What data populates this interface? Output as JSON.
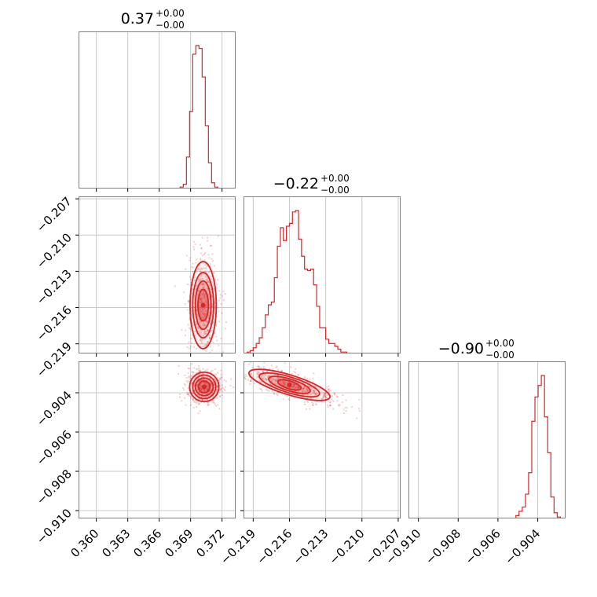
{
  "colors": {
    "accent": "#d62728",
    "grid": "#c8c8c8",
    "frame": "#808080"
  },
  "chart_data": [
    {
      "type": "histogram",
      "panel": "hist-param-1",
      "title": {
        "value": "0.37",
        "sup": "+0.00",
        "sub": "−0.00"
      },
      "xlim": [
        0.3583,
        0.3733
      ],
      "xticks": [
        0.36,
        0.363,
        0.366,
        0.369,
        0.372
      ],
      "xtick_labels": [
        "0.360",
        "0.363",
        "0.366",
        "0.369",
        "0.372"
      ],
      "bin_start": 0.368,
      "bin_width": 0.0003,
      "counts": [
        0.01,
        0.03,
        0.22,
        0.54,
        0.94,
        1.0,
        0.98,
        0.78,
        0.44,
        0.18,
        0.04,
        0.01
      ],
      "grid": true
    },
    {
      "type": "histogram",
      "panel": "hist-param-2",
      "title": {
        "value": "−0.22",
        "sup": "+0.00",
        "sub": "−0.00"
      },
      "xlim": [
        -0.2198,
        -0.2068
      ],
      "xticks": [
        -0.219,
        -0.216,
        -0.213,
        -0.21,
        -0.207
      ],
      "xtick_labels": [
        "−0.219",
        "−0.216",
        "−0.213",
        "−0.210",
        "−0.207"
      ],
      "bin_start": -0.2195,
      "bin_width": 0.00025,
      "counts": [
        0.01,
        0.02,
        0.04,
        0.07,
        0.11,
        0.18,
        0.27,
        0.34,
        0.36,
        0.53,
        0.75,
        0.88,
        0.79,
        0.89,
        0.91,
        0.99,
        1.0,
        0.8,
        0.68,
        0.59,
        0.58,
        0.59,
        0.48,
        0.33,
        0.18,
        0.18,
        0.1,
        0.07,
        0.07,
        0.05,
        0.03,
        0.01,
        0.01,
        0.0
      ],
      "grid": true
    },
    {
      "type": "histogram",
      "panel": "hist-param-3",
      "title": {
        "value": "−0.90",
        "sup": "+0.00",
        "sub": "−0.00"
      },
      "xlim": [
        -0.9105,
        -0.9026
      ],
      "xticks": [
        -0.91,
        -0.908,
        -0.906,
        -0.904
      ],
      "xtick_labels": [
        "−0.910",
        "−0.908",
        "−0.906",
        "−0.904"
      ],
      "bin_start": -0.9051,
      "bin_width": 0.00016,
      "counts": [
        0.02,
        0.05,
        0.08,
        0.17,
        0.32,
        0.68,
        0.85,
        0.93,
        1.0,
        0.71,
        0.46,
        0.15,
        0.04,
        0.01
      ],
      "grid": true
    },
    {
      "type": "scatter",
      "panel": "contour-p1-p2",
      "xlim": [
        0.3583,
        0.3733
      ],
      "ylim": [
        -0.2198,
        -0.2068
      ],
      "yticks": [
        -0.207,
        -0.21,
        -0.213,
        -0.216,
        -0.219
      ],
      "ytick_labels": [
        "−0.207",
        "−0.210",
        "−0.213",
        "−0.216",
        "−0.219"
      ],
      "center": [
        0.3702,
        -0.2158
      ],
      "contour_halfwidths": [
        [
          0.0005,
          0.0013
        ],
        [
          0.00075,
          0.002
        ],
        [
          0.001,
          0.0027
        ],
        [
          0.00125,
          0.0036
        ]
      ],
      "grid": true
    },
    {
      "type": "scatter",
      "panel": "contour-p1-p3",
      "xlim": [
        0.3583,
        0.3733
      ],
      "ylim": [
        -0.9104,
        -0.9024
      ],
      "yticks": [
        -0.904,
        -0.906,
        -0.908,
        -0.91
      ],
      "ytick_labels": [
        "−0.904",
        "−0.906",
        "−0.908",
        "−0.910"
      ],
      "xtick_labels": [
        "0.360",
        "0.363",
        "0.366",
        "0.369",
        "0.372"
      ],
      "center": [
        0.3703,
        -0.9037
      ],
      "contour_halfwidths": [
        [
          0.00055,
          0.0003
        ],
        [
          0.00085,
          0.00045
        ],
        [
          0.0011,
          0.0006
        ],
        [
          0.0014,
          0.00075
        ]
      ],
      "grid": true
    },
    {
      "type": "scatter",
      "panel": "contour-p2-p3",
      "xlim": [
        -0.2198,
        -0.2068
      ],
      "ylim": [
        -0.9104,
        -0.9024
      ],
      "xtick_labels": [
        "−0.219",
        "−0.216",
        "−0.213",
        "−0.210",
        "−0.207"
      ],
      "center": [
        -0.216,
        -0.9036
      ],
      "tilt_slope": -0.19,
      "contour_halfwidths": [
        [
          0.001,
          0.0002
        ],
        [
          0.0018,
          0.0003
        ],
        [
          0.0026,
          0.0004
        ],
        [
          0.0035,
          0.0005
        ]
      ],
      "grid": true
    }
  ]
}
